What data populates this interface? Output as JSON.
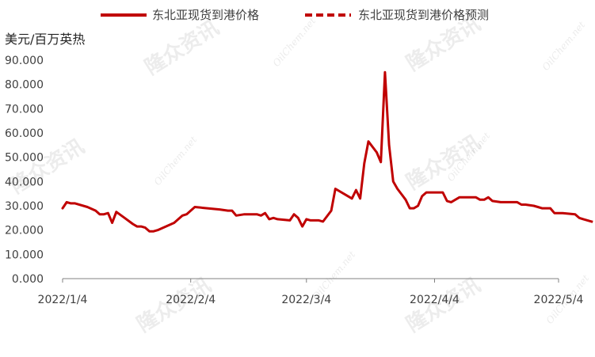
{
  "chart_data": {
    "type": "line",
    "ylabel": "美元/百万英热",
    "ylim": [
      0,
      90
    ],
    "yticks": [
      "0.000",
      "10.000",
      "20.000",
      "30.000",
      "40.000",
      "50.000",
      "60.000",
      "70.000",
      "80.000",
      "90.000"
    ],
    "xlim": [
      "2022-01-04",
      "2022-05-04"
    ],
    "xticks": [
      {
        "date": "2022-01-04",
        "label": "2022/1/4"
      },
      {
        "date": "2022-02-04",
        "label": "2022/2/4"
      },
      {
        "date": "2022-03-04",
        "label": "2022/3/4"
      },
      {
        "date": "2022-04-04",
        "label": "2022/4/4"
      },
      {
        "date": "2022-05-04",
        "label": "2022/5/4"
      }
    ],
    "legend_position": "top",
    "grid": false,
    "series": [
      {
        "name": "东北亚现货到港价格",
        "color": "#C00000",
        "style": "solid",
        "points": [
          [
            "2022-01-04",
            29
          ],
          [
            "2022-01-05",
            31.5
          ],
          [
            "2022-01-06",
            31
          ],
          [
            "2022-01-07",
            31
          ],
          [
            "2022-01-10",
            29.5
          ],
          [
            "2022-01-12",
            28
          ],
          [
            "2022-01-13",
            26.5
          ],
          [
            "2022-01-14",
            26.5
          ],
          [
            "2022-01-15",
            27
          ],
          [
            "2022-01-16",
            23
          ],
          [
            "2022-01-17",
            27.5
          ],
          [
            "2022-01-19",
            25
          ],
          [
            "2022-01-21",
            22.5
          ],
          [
            "2022-01-22",
            21.5
          ],
          [
            "2022-01-23",
            21.5
          ],
          [
            "2022-01-24",
            21
          ],
          [
            "2022-01-25",
            19.5
          ],
          [
            "2022-01-26",
            19.5
          ],
          [
            "2022-01-27",
            20
          ],
          [
            "2022-01-29",
            21.5
          ],
          [
            "2022-01-31",
            23
          ],
          [
            "2022-02-02",
            26
          ],
          [
            "2022-02-03",
            26.5
          ],
          [
            "2022-02-04",
            28
          ],
          [
            "2022-02-05",
            29.5
          ],
          [
            "2022-02-08",
            29
          ],
          [
            "2022-02-11",
            28.5
          ],
          [
            "2022-02-13",
            28
          ],
          [
            "2022-02-14",
            28
          ],
          [
            "2022-02-15",
            26
          ],
          [
            "2022-02-17",
            26.5
          ],
          [
            "2022-02-18",
            26.5
          ],
          [
            "2022-02-19",
            26.5
          ],
          [
            "2022-02-20",
            26.5
          ],
          [
            "2022-02-21",
            26
          ],
          [
            "2022-02-22",
            27
          ],
          [
            "2022-02-23",
            24.5
          ],
          [
            "2022-02-24",
            25
          ],
          [
            "2022-02-25",
            24.5
          ],
          [
            "2022-02-28",
            24
          ],
          [
            "2022-03-01",
            26.5
          ],
          [
            "2022-03-02",
            25
          ],
          [
            "2022-03-03",
            21.5
          ],
          [
            "2022-03-04",
            24.5
          ],
          [
            "2022-03-05",
            24
          ],
          [
            "2022-03-07",
            24
          ],
          [
            "2022-03-08",
            23.5
          ],
          [
            "2022-03-10",
            28
          ],
          [
            "2022-03-11",
            37
          ],
          [
            "2022-03-14",
            34
          ],
          [
            "2022-03-15",
            33
          ],
          [
            "2022-03-16",
            36.5
          ],
          [
            "2022-03-17",
            33
          ],
          [
            "2022-03-18",
            47.5
          ],
          [
            "2022-03-19",
            56.5
          ],
          [
            "2022-03-21",
            52
          ],
          [
            "2022-03-22",
            48
          ],
          [
            "2022-03-23",
            85
          ],
          [
            "2022-03-24",
            55
          ],
          [
            "2022-03-25",
            40
          ],
          [
            "2022-03-26",
            37
          ],
          [
            "2022-03-28",
            32.5
          ],
          [
            "2022-03-29",
            29
          ],
          [
            "2022-03-30",
            29
          ],
          [
            "2022-03-31",
            30
          ],
          [
            "2022-04-01",
            34
          ],
          [
            "2022-04-02",
            35.5
          ],
          [
            "2022-04-04",
            35.5
          ],
          [
            "2022-04-06",
            35.5
          ],
          [
            "2022-04-07",
            32
          ],
          [
            "2022-04-08",
            31.5
          ],
          [
            "2022-04-10",
            33.5
          ],
          [
            "2022-04-12",
            33.5
          ],
          [
            "2022-04-14",
            33.5
          ],
          [
            "2022-04-15",
            32.5
          ],
          [
            "2022-04-16",
            32.5
          ],
          [
            "2022-04-17",
            33.5
          ],
          [
            "2022-04-18",
            32
          ],
          [
            "2022-04-20",
            31.5
          ],
          [
            "2022-04-22",
            31.5
          ],
          [
            "2022-04-24",
            31.5
          ],
          [
            "2022-04-25",
            30.5
          ],
          [
            "2022-04-26",
            30.5
          ],
          [
            "2022-04-28",
            30
          ],
          [
            "2022-04-29",
            29.5
          ],
          [
            "2022-04-30",
            29
          ],
          [
            "2022-05-02",
            29
          ],
          [
            "2022-05-03",
            27
          ],
          [
            "2022-05-05",
            27
          ],
          [
            "2022-05-08",
            26.5
          ],
          [
            "2022-05-09",
            25
          ],
          [
            "2022-05-10",
            24.5
          ],
          [
            "2022-05-11",
            24
          ]
        ]
      },
      {
        "name": "东北亚现货到港价格预测",
        "color": "#C00000",
        "style": "dashed",
        "points": [
          [
            "2022-05-11",
            24
          ],
          [
            "2022-05-12",
            23.5
          ],
          [
            "2022-05-13",
            23
          ],
          [
            "2022-05-14",
            22.5
          ],
          [
            "2022-05-15",
            22
          ],
          [
            "2022-05-16",
            22.5
          ]
        ]
      }
    ]
  },
  "watermark": {
    "brand_cn": "隆众资讯",
    "brand_en": "OilChem.net"
  }
}
